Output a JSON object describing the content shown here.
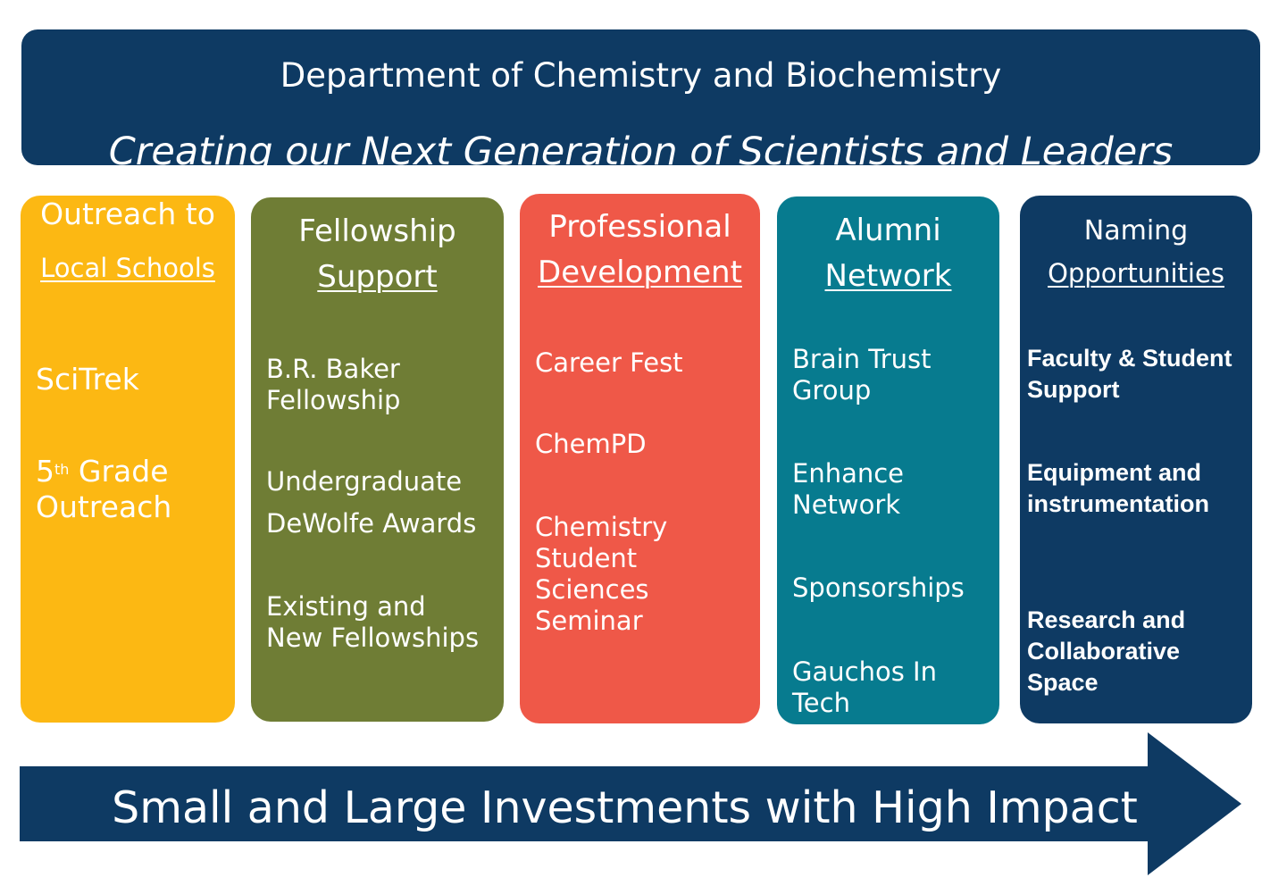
{
  "header": {
    "title": "Department of Chemistry and Biochemistry",
    "subtitle": "Creating our Next Generation of Scientists and Leaders"
  },
  "columns": [
    {
      "heading1": "Outreach to",
      "heading2": "Local Schools",
      "color": "#fcb813",
      "items": [
        "SciTrek",
        "Grade\nOutreach"
      ],
      "item_prefix": {
        "number": "5",
        "suffix": "th"
      }
    },
    {
      "heading1": "Fellowship",
      "heading2": "Support",
      "color": "#6f7d35",
      "items": [
        "B.R. Baker\nFellowship",
        "Undergraduate",
        "DeWolfe Awards",
        "Existing and\nNew Fellowships"
      ]
    },
    {
      "heading1": "Professional",
      "heading2": "Development",
      "color": "#ef5848",
      "items": [
        "Career Fest",
        "ChemPD",
        "Chemistry\nStudent\nSciences\nSeminar"
      ]
    },
    {
      "heading1": "Alumni",
      "heading2": "Network",
      "color": "#077b8f",
      "items": [
        "Brain Trust\nGroup",
        "Enhance\nNetwork",
        "Sponsorships",
        "Gauchos In\nTech"
      ]
    },
    {
      "heading1": "Naming",
      "heading2": "Opportunities",
      "color": "#0e3a63",
      "items": [
        "Faculty & Student\nSupport",
        "Equipment and\ninstrumentation",
        "Research and\nCollaborative\nSpace"
      ]
    }
  ],
  "footer": {
    "text": "Small and Large Investments with High Impact",
    "color": "#0e3a63"
  }
}
